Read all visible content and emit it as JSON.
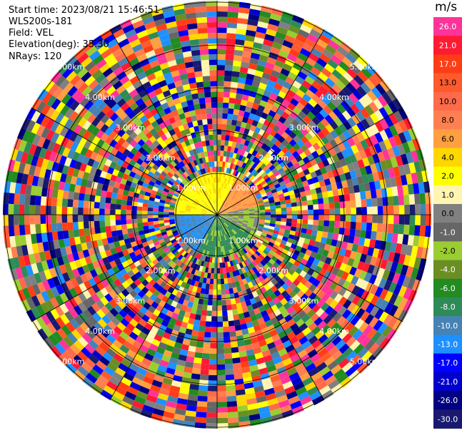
{
  "info": {
    "start_time": "Start time: 2023/08/21 15:46:51",
    "instrument": "WLS200s-181",
    "field": "Field: VEL",
    "elevation": "Elevation(deg): 35.30",
    "nrays": "NRays: 120"
  },
  "colorbar": {
    "unit": "m/s",
    "levels": [
      {
        "label": "26.0",
        "color": "#ff3399"
      },
      {
        "label": "21.0",
        "color": "#ff1a33"
      },
      {
        "label": "17.0",
        "color": "#ff3d14"
      },
      {
        "label": "13.0",
        "color": "#ff5a2e"
      },
      {
        "label": "10.0",
        "color": "#ff6a4a"
      },
      {
        "label": "8.0",
        "color": "#ff7f50"
      },
      {
        "label": "6.0",
        "color": "#ff9f40"
      },
      {
        "label": "4.0",
        "color": "#ffd700"
      },
      {
        "label": "2.0",
        "color": "#ffff00"
      },
      {
        "label": "1.0",
        "color": "#fff5b0"
      },
      {
        "label": "0.0",
        "color": "#808080"
      },
      {
        "label": "-1.0",
        "color": "#666666"
      },
      {
        "label": "-2.0",
        "color": "#9acd32"
      },
      {
        "label": "-4.0",
        "color": "#6b8e23"
      },
      {
        "label": "-6.0",
        "color": "#228b22"
      },
      {
        "label": "-8.0",
        "color": "#2e8b57"
      },
      {
        "label": "-10.0",
        "color": "#4682b4"
      },
      {
        "label": "-13.0",
        "color": "#1e90ff"
      },
      {
        "label": "-17.0",
        "color": "#0000ff"
      },
      {
        "label": "-21.0",
        "color": "#0000cd"
      },
      {
        "label": "-26.0",
        "color": "#000080"
      },
      {
        "label": "-30.0",
        "color": "#191970"
      }
    ]
  },
  "chart_data": {
    "type": "heatmap",
    "field": "VEL",
    "nrays": 120,
    "range_rings_km": [
      "1.00km",
      "2.00km",
      "3.00km",
      "4.00km",
      "5.00km"
    ],
    "value_range": [
      -30.0,
      26.0
    ]
  }
}
